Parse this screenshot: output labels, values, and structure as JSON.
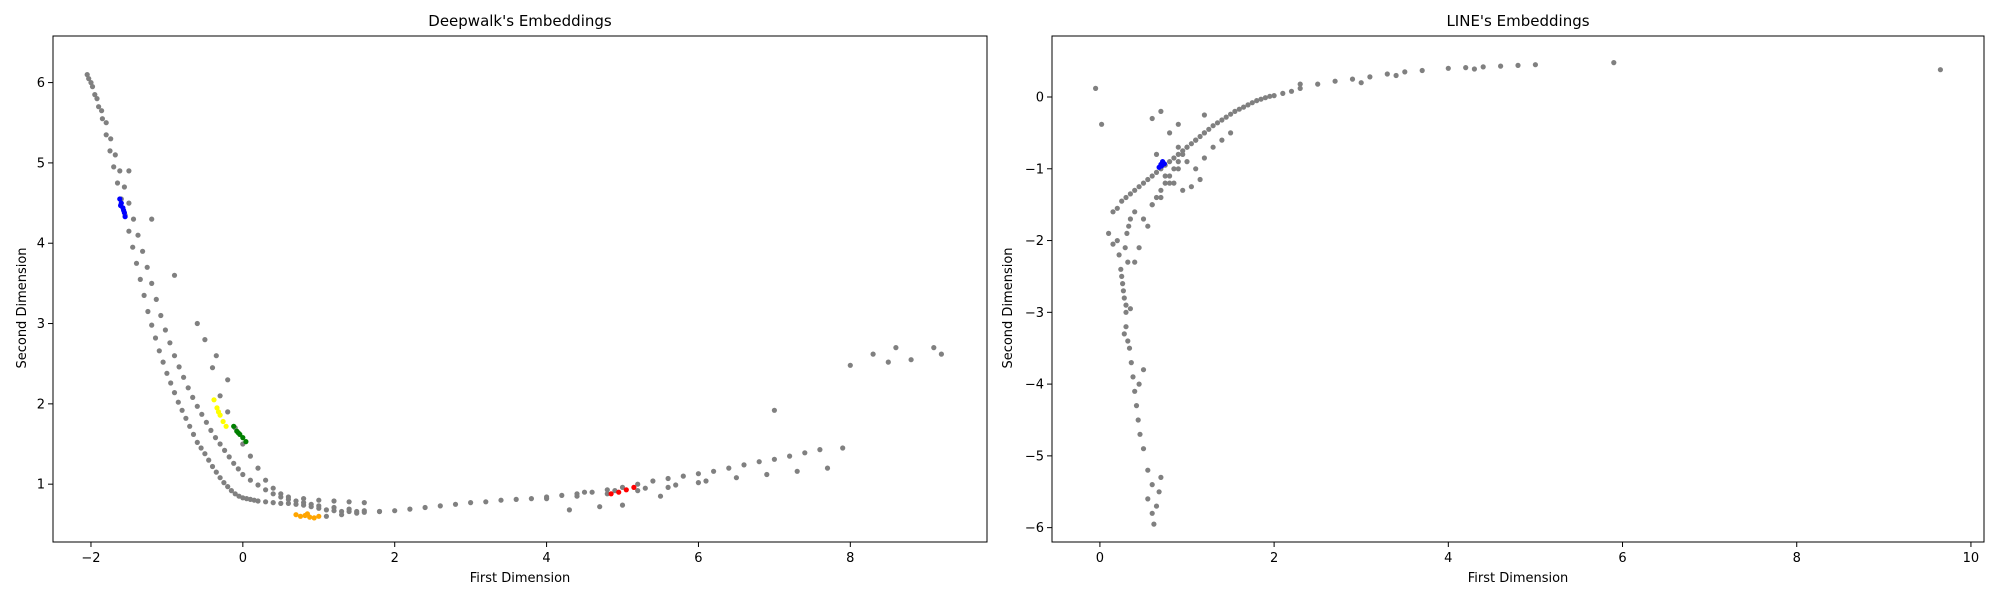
{
  "chart_data": [
    {
      "type": "scatter",
      "title": "Deepwalk's Embeddings",
      "xlabel": "First Dimension",
      "ylabel": "Second Dimension",
      "xlim": [
        -2.5,
        9.8
      ],
      "ylim": [
        0.28,
        6.58
      ],
      "xticks": [
        -2,
        0,
        2,
        4,
        6,
        8
      ],
      "yticks": [
        1,
        2,
        3,
        4,
        5,
        6
      ],
      "grid": false,
      "series": [
        {
          "color": "#808080",
          "x": [
            -2.05,
            -2.0,
            -1.95,
            -1.9,
            -1.85,
            -1.8,
            -1.75,
            -1.7,
            -1.65,
            -1.6,
            -1.55,
            -1.5,
            -1.45,
            -1.4,
            -1.35,
            -1.3,
            -1.25,
            -1.2,
            -1.15,
            -1.1,
            -1.05,
            -1.0,
            -0.95,
            -0.9,
            -0.85,
            -0.8,
            -0.75,
            -0.7,
            -0.65,
            -0.6,
            -0.55,
            -0.5,
            -0.45,
            -0.4,
            -0.35,
            -0.3,
            -0.25,
            -0.2,
            -0.15,
            -0.1,
            -0.05,
            0.0,
            0.05,
            0.1,
            0.15,
            0.2,
            0.3,
            0.4,
            0.5,
            0.6,
            0.7,
            0.8,
            0.9,
            1.0,
            1.1,
            1.2,
            1.3,
            1.4,
            1.5,
            1.6,
            1.8,
            2.0,
            2.2,
            2.4,
            2.6,
            2.8,
            3.0,
            3.2,
            3.4,
            3.6,
            3.8,
            4.0,
            4.2,
            4.4,
            4.6,
            4.8,
            5.0,
            5.2,
            5.4,
            5.6,
            5.8,
            6.0,
            6.2,
            6.4,
            6.6,
            6.8,
            7.0,
            7.2,
            7.4,
            7.6,
            -2.03,
            -1.98,
            -1.92,
            -1.86,
            -1.8,
            -1.74,
            -1.68,
            -1.62,
            -1.56,
            -1.5,
            -1.44,
            -1.38,
            -1.32,
            -1.26,
            -1.2,
            -1.14,
            -1.08,
            -1.02,
            -0.96,
            -0.9,
            -0.84,
            -0.78,
            -0.72,
            -0.66,
            -0.6,
            -0.54,
            -0.48,
            -0.42,
            -0.36,
            -0.3,
            -0.24,
            -0.18,
            -0.12,
            -0.06,
            0.0,
            0.1,
            0.2,
            0.3,
            0.4,
            0.5,
            0.6,
            0.7,
            0.8,
            0.9,
            1.0,
            1.2,
            1.4,
            1.6,
            1.8,
            -1.5,
            -1.2,
            -0.9,
            -0.6,
            -0.5,
            -0.4,
            -0.3,
            -0.2,
            -0.1,
            0.0,
            0.1,
            0.2,
            0.3,
            0.4,
            0.5,
            0.6,
            0.8,
            1.0,
            1.2,
            1.4,
            1.6,
            4.0,
            4.4,
            4.8,
            5.2,
            5.6,
            6.0,
            4.5,
            4.9,
            5.3,
            5.7,
            6.1,
            6.5,
            6.9,
            7.3,
            7.7,
            7.0,
            7.9,
            8.0,
            8.3,
            8.5,
            8.6,
            8.8,
            9.1,
            9.2,
            1.1,
            1.3,
            1.5,
            4.3,
            4.7,
            5.0,
            5.5,
            -0.2,
            -0.35
          ],
          "y": [
            6.1,
            6.0,
            5.85,
            5.7,
            5.55,
            5.35,
            5.15,
            4.95,
            4.75,
            4.55,
            4.35,
            4.15,
            3.95,
            3.75,
            3.55,
            3.35,
            3.15,
            2.98,
            2.82,
            2.66,
            2.52,
            2.38,
            2.26,
            2.14,
            2.02,
            1.92,
            1.82,
            1.72,
            1.62,
            1.52,
            1.45,
            1.38,
            1.3,
            1.22,
            1.15,
            1.08,
            1.02,
            0.97,
            0.92,
            0.88,
            0.85,
            0.83,
            0.82,
            0.81,
            0.8,
            0.79,
            0.78,
            0.77,
            0.76,
            0.76,
            0.75,
            0.74,
            0.72,
            0.7,
            0.68,
            0.67,
            0.66,
            0.66,
            0.66,
            0.65,
            0.66,
            0.67,
            0.69,
            0.71,
            0.73,
            0.75,
            0.77,
            0.78,
            0.8,
            0.81,
            0.82,
            0.84,
            0.86,
            0.88,
            0.9,
            0.93,
            0.96,
            1.0,
            1.04,
            1.07,
            1.1,
            1.13,
            1.16,
            1.2,
            1.24,
            1.28,
            1.31,
            1.35,
            1.39,
            1.43,
            6.05,
            5.95,
            5.8,
            5.65,
            5.5,
            5.3,
            5.1,
            4.9,
            4.7,
            4.5,
            4.3,
            4.1,
            3.9,
            3.7,
            3.5,
            3.3,
            3.1,
            2.92,
            2.76,
            2.6,
            2.46,
            2.33,
            2.2,
            2.08,
            1.97,
            1.87,
            1.77,
            1.67,
            1.58,
            1.5,
            1.42,
            1.34,
            1.26,
            1.19,
            1.12,
            1.05,
            0.99,
            0.93,
            0.88,
            0.84,
            0.81,
            0.79,
            0.77,
            0.75,
            0.73,
            0.71,
            0.69,
            0.67,
            0.66,
            4.9,
            4.3,
            3.6,
            3.0,
            2.8,
            2.45,
            2.1,
            1.9,
            1.7,
            1.5,
            1.35,
            1.2,
            1.05,
            0.95,
            0.88,
            0.84,
            0.82,
            0.8,
            0.79,
            0.78,
            0.77,
            0.82,
            0.85,
            0.88,
            0.92,
            0.96,
            1.02,
            0.9,
            0.92,
            0.95,
            0.99,
            1.04,
            1.08,
            1.12,
            1.16,
            1.2,
            1.92,
            1.45,
            2.48,
            2.62,
            2.52,
            2.7,
            2.55,
            2.7,
            2.62,
            0.6,
            0.62,
            0.64,
            0.68,
            0.72,
            0.74,
            0.85,
            2.3,
            2.6
          ]
        },
        {
          "color": "#0000ff",
          "x": [
            -1.62,
            -1.6,
            -1.58,
            -1.56,
            -1.55,
            -1.61,
            -1.57
          ],
          "y": [
            4.55,
            4.5,
            4.44,
            4.38,
            4.33,
            4.47,
            4.41
          ]
        },
        {
          "color": "#ffff00",
          "x": [
            -0.38,
            -0.34,
            -0.3,
            -0.26,
            -0.22,
            -0.32
          ],
          "y": [
            2.05,
            1.95,
            1.86,
            1.78,
            1.72,
            1.9
          ]
        },
        {
          "color": "#008000",
          "x": [
            -0.12,
            -0.08,
            -0.04,
            0.0,
            0.04,
            -0.06
          ],
          "y": [
            1.72,
            1.66,
            1.62,
            1.58,
            1.53,
            1.64
          ]
        },
        {
          "color": "#ffa500",
          "x": [
            0.7,
            0.76,
            0.82,
            0.88,
            0.94,
            1.0,
            0.85
          ],
          "y": [
            0.62,
            0.6,
            0.61,
            0.59,
            0.58,
            0.6,
            0.63
          ]
        },
        {
          "color": "#ff0000",
          "x": [
            4.85,
            4.95,
            5.05,
            5.15
          ],
          "y": [
            0.88,
            0.9,
            0.93,
            0.96
          ]
        }
      ]
    },
    {
      "type": "scatter",
      "title": "LINE's Embeddings",
      "xlabel": "First Dimension",
      "ylabel": "Second Dimension",
      "xlim": [
        -0.55,
        10.15
      ],
      "ylim": [
        -6.2,
        0.85
      ],
      "xticks": [
        0,
        2,
        4,
        6,
        8,
        10
      ],
      "yticks": [
        0,
        -1,
        -2,
        -3,
        -4,
        -5,
        -6
      ],
      "grid": false,
      "series": [
        {
          "color": "#808080",
          "x": [
            -0.05,
            0.02,
            0.15,
            0.2,
            0.25,
            0.3,
            0.35,
            0.4,
            0.45,
            0.5,
            0.55,
            0.6,
            0.65,
            0.7,
            0.75,
            0.8,
            0.85,
            0.9,
            0.95,
            1.0,
            1.05,
            1.1,
            1.15,
            1.2,
            1.25,
            1.3,
            1.35,
            1.4,
            1.45,
            1.5,
            1.55,
            1.6,
            1.65,
            1.7,
            1.75,
            1.8,
            1.85,
            1.9,
            1.95,
            2.0,
            2.1,
            2.2,
            2.3,
            2.5,
            2.7,
            2.9,
            3.1,
            3.3,
            3.5,
            3.7,
            4.0,
            4.2,
            4.4,
            4.6,
            4.8,
            5.0,
            5.9,
            9.65,
            0.2,
            0.22,
            0.24,
            0.26,
            0.28,
            0.3,
            0.32,
            0.25,
            0.27,
            0.29,
            0.31,
            0.33,
            0.35,
            0.3,
            0.32,
            0.34,
            0.36,
            0.38,
            0.4,
            0.42,
            0.44,
            0.46,
            0.5,
            0.55,
            0.6,
            0.55,
            0.6,
            0.62,
            0.65,
            0.68,
            0.7,
            0.45,
            0.5,
            0.3,
            0.28,
            0.35,
            0.15,
            0.1,
            0.4,
            0.45,
            0.55,
            0.6,
            0.65,
            0.7,
            0.75,
            0.8,
            0.85,
            0.9,
            0.95,
            1.0,
            1.1,
            1.2,
            0.7,
            0.8,
            0.9,
            1.0,
            1.1,
            1.2,
            1.3,
            1.4,
            1.5,
            0.6,
            0.65,
            0.75,
            0.85,
            0.95,
            1.05,
            1.15,
            0.4,
            0.5,
            0.6,
            0.7,
            0.8,
            0.9,
            2.3,
            3.0,
            3.4,
            4.3,
            1.2,
            0.9
          ],
          "y": [
            0.12,
            -0.38,
            -1.6,
            -1.55,
            -1.45,
            -1.4,
            -1.35,
            -1.3,
            -1.25,
            -1.2,
            -1.15,
            -1.1,
            -1.05,
            -1.0,
            -0.95,
            -0.9,
            -0.85,
            -0.8,
            -0.75,
            -0.7,
            -0.65,
            -0.6,
            -0.55,
            -0.5,
            -0.45,
            -0.4,
            -0.36,
            -0.32,
            -0.28,
            -0.24,
            -0.2,
            -0.17,
            -0.14,
            -0.11,
            -0.08,
            -0.05,
            -0.03,
            -0.01,
            0.01,
            0.02,
            0.05,
            0.08,
            0.12,
            0.18,
            0.22,
            0.25,
            0.28,
            0.32,
            0.35,
            0.37,
            0.4,
            0.41,
            0.42,
            0.43,
            0.44,
            0.45,
            0.48,
            0.38,
            -2.0,
            -2.2,
            -2.4,
            -2.6,
            -2.8,
            -2.9,
            -2.3,
            -2.5,
            -2.7,
            -2.1,
            -1.9,
            -1.8,
            -1.7,
            -3.2,
            -3.4,
            -3.5,
            -3.7,
            -3.9,
            -4.1,
            -4.3,
            -4.5,
            -4.7,
            -4.9,
            -5.2,
            -5.4,
            -5.6,
            -5.8,
            -5.95,
            -5.7,
            -5.5,
            -5.3,
            -4.0,
            -3.8,
            -3.0,
            -3.3,
            -2.95,
            -2.05,
            -1.9,
            -2.3,
            -2.1,
            -1.8,
            -1.5,
            -1.4,
            -1.3,
            -1.2,
            -1.1,
            -1.0,
            -0.9,
            -0.8,
            -0.7,
            -0.6,
            -0.5,
            -0.2,
            -0.5,
            -0.7,
            -0.9,
            -1.0,
            -0.85,
            -0.7,
            -0.6,
            -0.5,
            -0.3,
            -0.8,
            -1.1,
            -1.2,
            -1.3,
            -1.25,
            -1.15,
            -1.6,
            -1.7,
            -1.5,
            -1.4,
            -1.2,
            -1.0,
            0.18,
            0.2,
            0.3,
            0.39,
            -0.25,
            -0.38
          ]
        },
        {
          "color": "#0000ff",
          "x": [
            0.68,
            0.7,
            0.72,
            0.74,
            0.71
          ],
          "y": [
            -0.98,
            -0.94,
            -0.9,
            -0.93,
            -0.96
          ]
        }
      ]
    }
  ]
}
